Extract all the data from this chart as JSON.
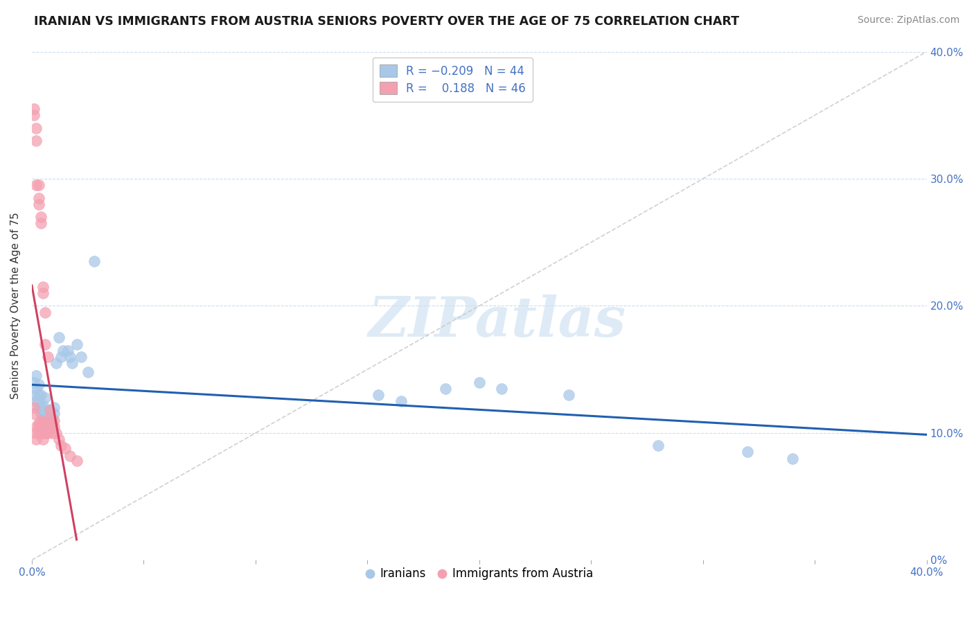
{
  "title": "IRANIAN VS IMMIGRANTS FROM AUSTRIA SENIORS POVERTY OVER THE AGE OF 75 CORRELATION CHART",
  "source": "Source: ZipAtlas.com",
  "ylabel": "Seniors Poverty Over the Age of 75",
  "xlim": [
    0,
    0.4
  ],
  "ylim": [
    0,
    0.4
  ],
  "blue_R": -0.209,
  "blue_N": 44,
  "pink_R": 0.188,
  "pink_N": 46,
  "blue_color": "#a8c8e8",
  "pink_color": "#f4a0b0",
  "blue_line_color": "#2060b0",
  "pink_line_color": "#d04060",
  "diag_color": "#c8c8c8",
  "grid_color": "#c8ddf0",
  "iranians_x": [
    0.001,
    0.001,
    0.002,
    0.002,
    0.002,
    0.003,
    0.003,
    0.003,
    0.003,
    0.004,
    0.004,
    0.004,
    0.005,
    0.005,
    0.005,
    0.006,
    0.006,
    0.006,
    0.007,
    0.007,
    0.008,
    0.009,
    0.01,
    0.01,
    0.011,
    0.012,
    0.013,
    0.014,
    0.016,
    0.017,
    0.018,
    0.02,
    0.022,
    0.025,
    0.028,
    0.155,
    0.165,
    0.185,
    0.2,
    0.21,
    0.24,
    0.28,
    0.32,
    0.34
  ],
  "iranians_y": [
    0.14,
    0.13,
    0.125,
    0.135,
    0.145,
    0.12,
    0.125,
    0.13,
    0.138,
    0.115,
    0.12,
    0.13,
    0.112,
    0.118,
    0.122,
    0.11,
    0.115,
    0.128,
    0.105,
    0.118,
    0.108,
    0.112,
    0.115,
    0.12,
    0.155,
    0.175,
    0.16,
    0.165,
    0.165,
    0.16,
    0.155,
    0.17,
    0.16,
    0.148,
    0.235,
    0.13,
    0.125,
    0.135,
    0.14,
    0.135,
    0.13,
    0.09,
    0.085,
    0.08
  ],
  "austria_x": [
    0.001,
    0.001,
    0.001,
    0.001,
    0.002,
    0.002,
    0.002,
    0.002,
    0.002,
    0.002,
    0.003,
    0.003,
    0.003,
    0.003,
    0.003,
    0.003,
    0.004,
    0.004,
    0.004,
    0.004,
    0.005,
    0.005,
    0.005,
    0.005,
    0.005,
    0.005,
    0.006,
    0.006,
    0.006,
    0.006,
    0.007,
    0.007,
    0.007,
    0.008,
    0.008,
    0.008,
    0.009,
    0.009,
    0.01,
    0.01,
    0.011,
    0.012,
    0.013,
    0.015,
    0.017,
    0.02
  ],
  "austria_y": [
    0.355,
    0.35,
    0.12,
    0.115,
    0.34,
    0.33,
    0.295,
    0.105,
    0.1,
    0.095,
    0.285,
    0.28,
    0.295,
    0.108,
    0.105,
    0.1,
    0.265,
    0.27,
    0.11,
    0.105,
    0.21,
    0.215,
    0.108,
    0.105,
    0.1,
    0.095,
    0.195,
    0.17,
    0.105,
    0.1,
    0.16,
    0.108,
    0.1,
    0.118,
    0.112,
    0.105,
    0.108,
    0.1,
    0.11,
    0.105,
    0.1,
    0.095,
    0.09,
    0.088,
    0.082,
    0.078
  ]
}
